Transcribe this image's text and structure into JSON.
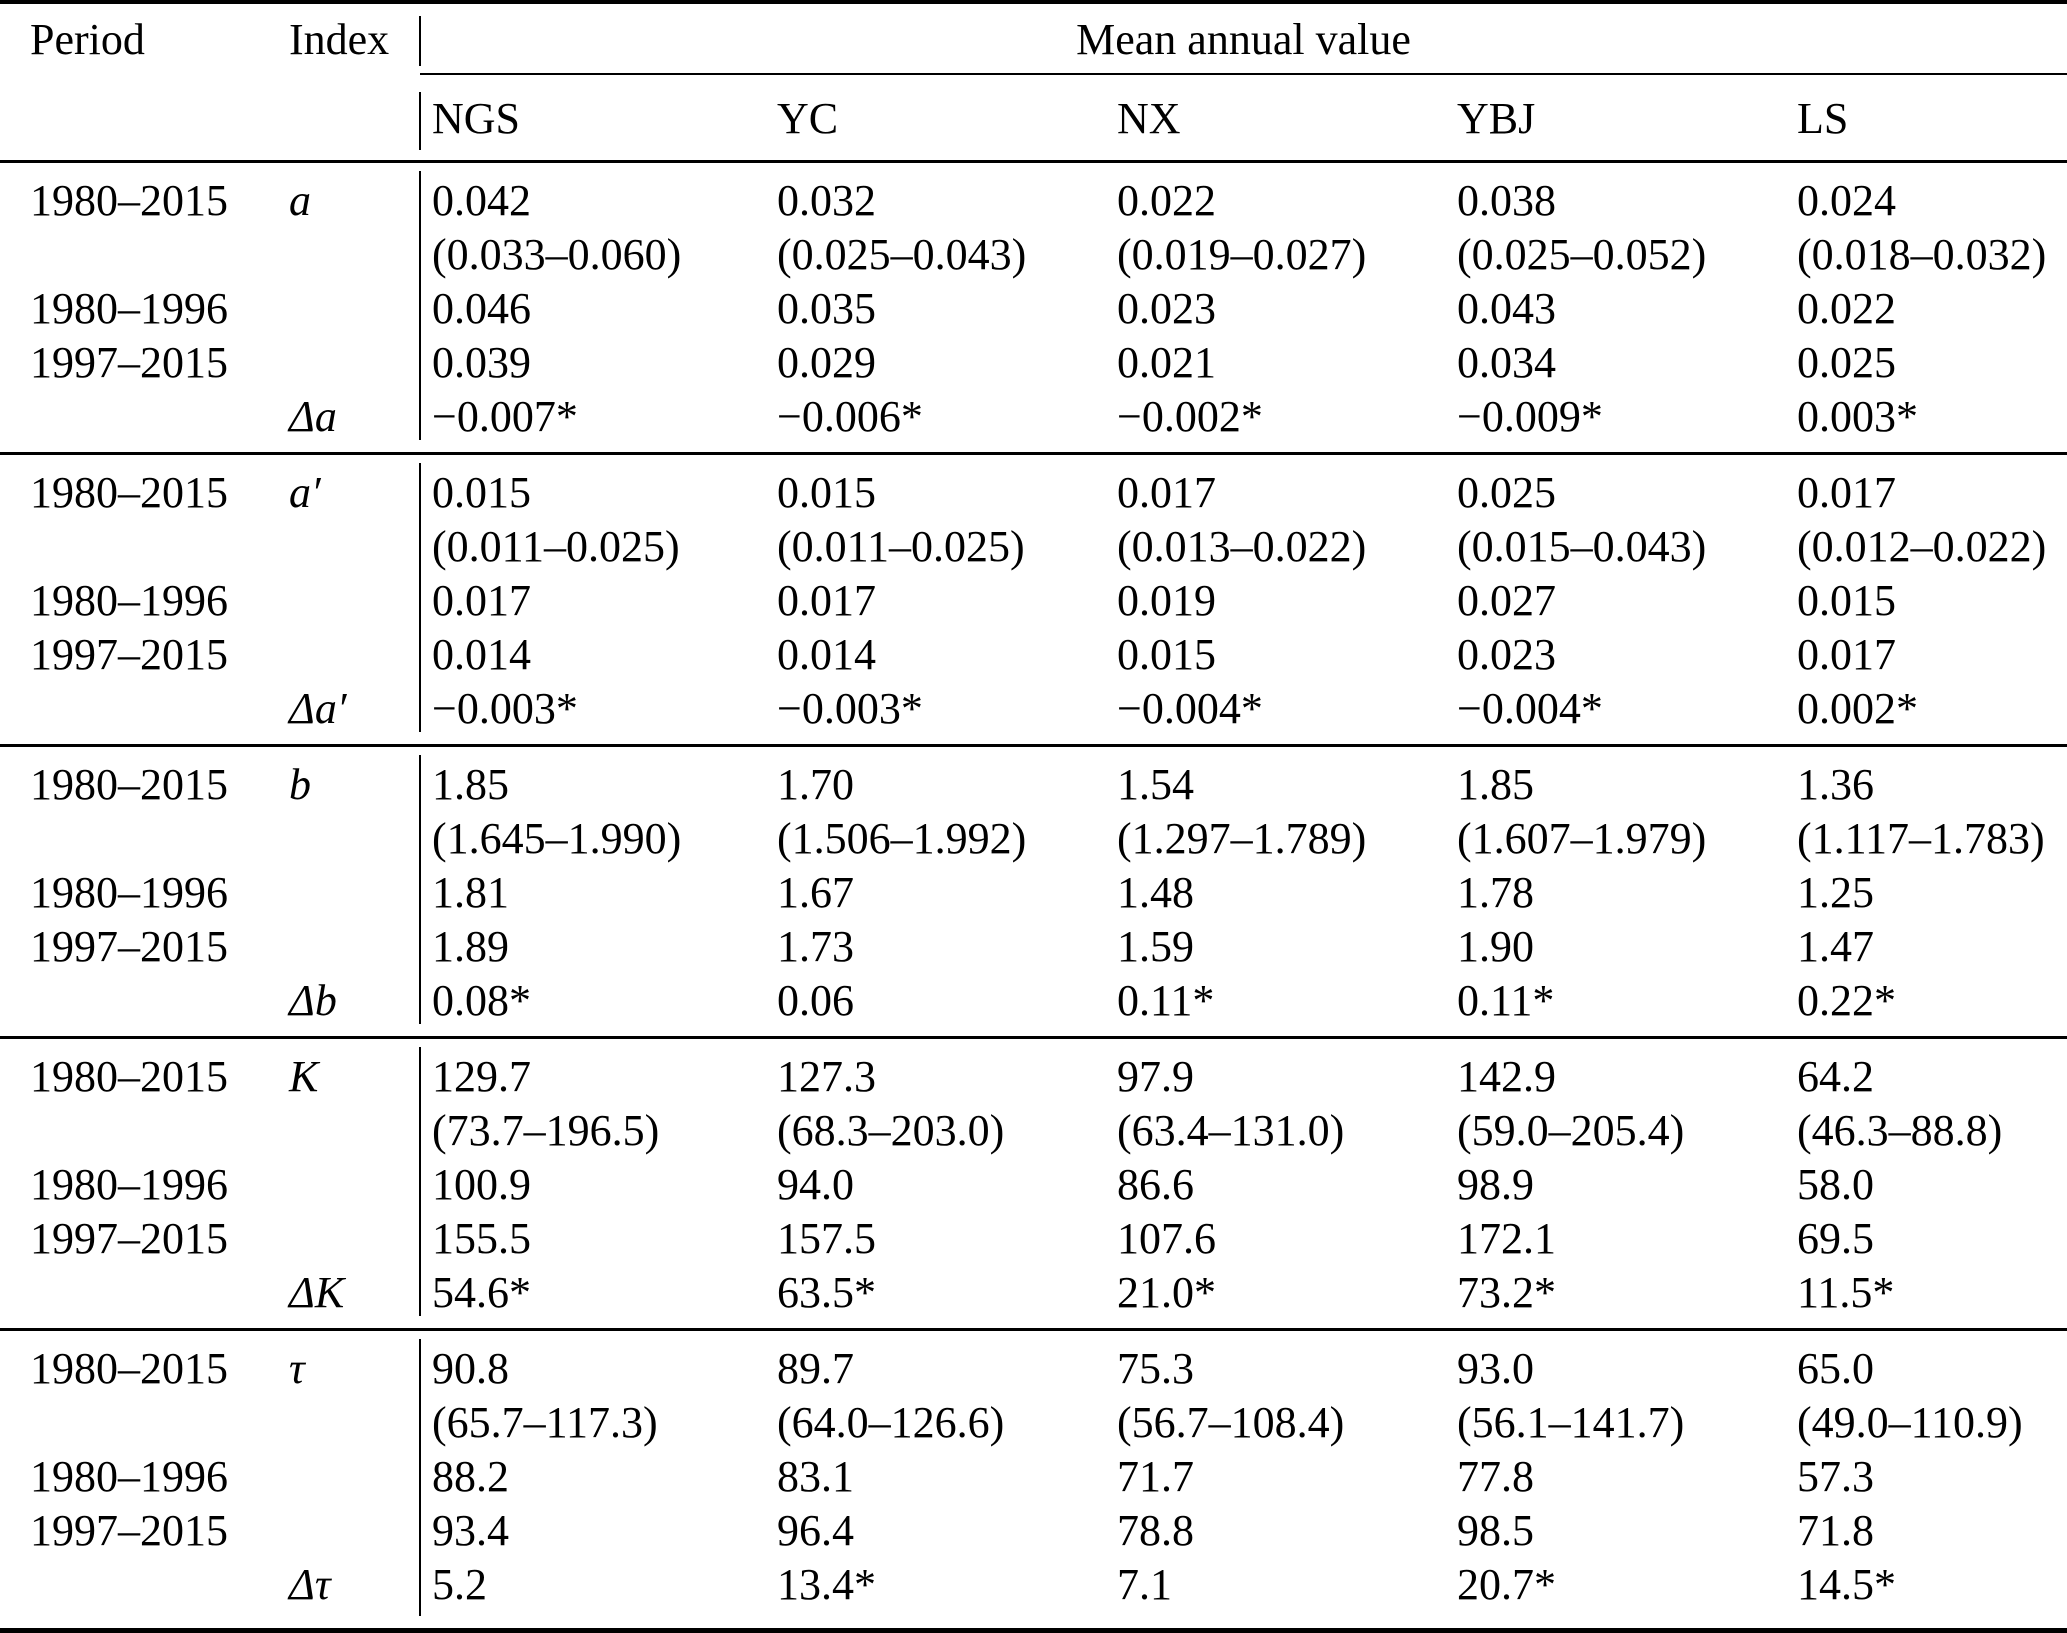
{
  "table": {
    "header": {
      "period": "Period",
      "index": "Index",
      "span": "Mean annual value",
      "columns": [
        "NGS",
        "YC",
        "NX",
        "YBJ",
        "LS"
      ]
    },
    "sections": [
      {
        "rows": [
          {
            "period": "1980–2015",
            "index": "a",
            "cells": [
              "0.042",
              "0.032",
              "0.022",
              "0.038",
              "0.024"
            ]
          },
          {
            "period": "",
            "index": "",
            "cells": [
              "(0.033–0.060)",
              "(0.025–0.043)",
              "(0.019–0.027)",
              "(0.025–0.052)",
              "(0.018–0.032)"
            ]
          },
          {
            "period": "1980–1996",
            "index": "",
            "cells": [
              "0.046",
              "0.035",
              "0.023",
              "0.043",
              "0.022"
            ]
          },
          {
            "period": "1997–2015",
            "index": "",
            "cells": [
              "0.039",
              "0.029",
              "0.021",
              "0.034",
              "0.025"
            ]
          },
          {
            "period": "",
            "index": "Δa",
            "cells": [
              "−0.007*",
              "−0.006*",
              "−0.002*",
              "−0.009*",
              "0.003*"
            ]
          }
        ]
      },
      {
        "rows": [
          {
            "period": "1980–2015",
            "index": "a′",
            "cells": [
              "0.015",
              "0.015",
              "0.017",
              "0.025",
              "0.017"
            ]
          },
          {
            "period": "",
            "index": "",
            "cells": [
              "(0.011–0.025)",
              "(0.011–0.025)",
              "(0.013–0.022)",
              "(0.015–0.043)",
              "(0.012–0.022)"
            ]
          },
          {
            "period": "1980–1996",
            "index": "",
            "cells": [
              "0.017",
              "0.017",
              "0.019",
              "0.027",
              "0.015"
            ]
          },
          {
            "period": "1997–2015",
            "index": "",
            "cells": [
              "0.014",
              "0.014",
              "0.015",
              "0.023",
              "0.017"
            ]
          },
          {
            "period": "",
            "index": "Δa′",
            "cells": [
              "−0.003*",
              "−0.003*",
              "−0.004*",
              "−0.004*",
              "0.002*"
            ]
          }
        ]
      },
      {
        "rows": [
          {
            "period": "1980–2015",
            "index": "b",
            "cells": [
              "1.85",
              "1.70",
              "1.54",
              "1.85",
              "1.36"
            ]
          },
          {
            "period": "",
            "index": "",
            "cells": [
              "(1.645–1.990)",
              "(1.506–1.992)",
              "(1.297–1.789)",
              "(1.607–1.979)",
              "(1.117–1.783)"
            ]
          },
          {
            "period": "1980–1996",
            "index": "",
            "cells": [
              "1.81",
              "1.67",
              "1.48",
              "1.78",
              "1.25"
            ]
          },
          {
            "period": "1997–2015",
            "index": "",
            "cells": [
              "1.89",
              "1.73",
              "1.59",
              "1.90",
              "1.47"
            ]
          },
          {
            "period": "",
            "index": "Δb",
            "cells": [
              "0.08*",
              "0.06",
              "0.11*",
              "0.11*",
              "0.22*"
            ]
          }
        ]
      },
      {
        "rows": [
          {
            "period": "1980–2015",
            "index": "K",
            "cells": [
              "129.7",
              "127.3",
              "97.9",
              "142.9",
              "64.2"
            ]
          },
          {
            "period": "",
            "index": "",
            "cells": [
              "(73.7–196.5)",
              "(68.3–203.0)",
              "(63.4–131.0)",
              "(59.0–205.4)",
              "(46.3–88.8)"
            ]
          },
          {
            "period": "1980–1996",
            "index": "",
            "cells": [
              "100.9",
              "94.0",
              "86.6",
              "98.9",
              "58.0"
            ]
          },
          {
            "period": "1997–2015",
            "index": "",
            "cells": [
              "155.5",
              "157.5",
              "107.6",
              "172.1",
              "69.5"
            ]
          },
          {
            "period": "",
            "index": "ΔK",
            "cells": [
              "54.6*",
              "63.5*",
              "21.0*",
              "73.2*",
              "11.5*"
            ]
          }
        ]
      },
      {
        "rows": [
          {
            "period": "1980–2015",
            "index": "τ",
            "cells": [
              "90.8",
              "89.7",
              "75.3",
              "93.0",
              "65.0"
            ]
          },
          {
            "period": "",
            "index": "",
            "cells": [
              "(65.7–117.3)",
              "(64.0–126.6)",
              "(56.7–108.4)",
              "(56.1–141.7)",
              "(49.0–110.9)"
            ]
          },
          {
            "period": "1980–1996",
            "index": "",
            "cells": [
              "88.2",
              "83.1",
              "71.7",
              "77.8",
              "57.3"
            ]
          },
          {
            "period": "1997–2015",
            "index": "",
            "cells": [
              "93.4",
              "96.4",
              "78.8",
              "98.5",
              "71.8"
            ]
          },
          {
            "period": "",
            "index": "Δτ",
            "cells": [
              "5.2",
              "13.4*",
              "7.1",
              "20.7*",
              "14.5*"
            ]
          }
        ]
      }
    ]
  }
}
